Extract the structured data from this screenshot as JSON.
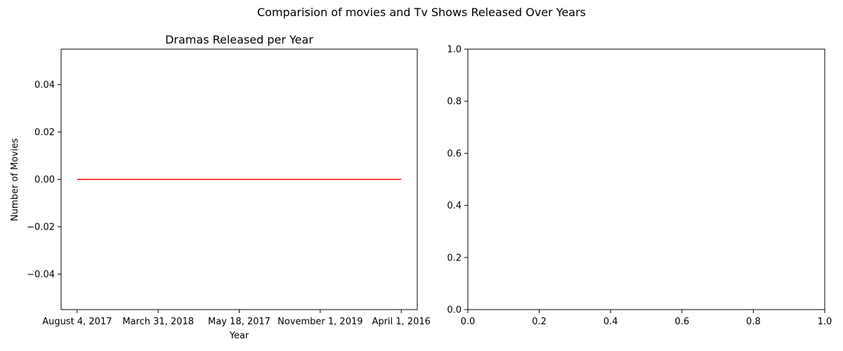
{
  "figure": {
    "title": "Comparision of movies and Tv Shows Released Over Years"
  },
  "chart_data": [
    {
      "type": "line",
      "title": "Dramas Released per Year",
      "xlabel": "Year",
      "ylabel": "Number of Movies",
      "categories": [
        "August 4, 2017",
        "March 31, 2018",
        "May 18, 2017",
        "November 1, 2019",
        "April 1, 2016"
      ],
      "series": [
        {
          "values": [
            0,
            0,
            0,
            0,
            0
          ],
          "color": "#ff0000"
        }
      ],
      "ylim": [
        -0.055,
        0.055
      ],
      "yticks": [
        "0.04",
        "0.02",
        "0.00",
        "−0.02",
        "−0.04"
      ],
      "grid": false
    },
    {
      "type": "line",
      "title": "",
      "xlabel": "",
      "ylabel": "",
      "series": [],
      "xlim": [
        0,
        1
      ],
      "ylim": [
        0,
        1
      ],
      "xticks": [
        "0.0",
        "0.2",
        "0.4",
        "0.6",
        "0.8",
        "1.0"
      ],
      "yticks": [
        "0.0",
        "0.2",
        "0.4",
        "0.6",
        "0.8",
        "1.0"
      ],
      "grid": false
    }
  ]
}
